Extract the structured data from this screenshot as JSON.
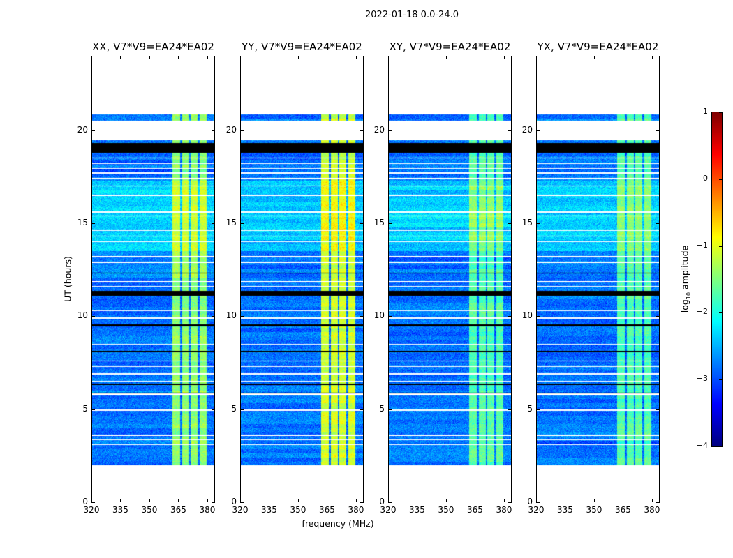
{
  "chart_data": {
    "type": "heatmap",
    "title": "2022-01-18 0.0-24.0",
    "xlabel": "frequency (MHz)",
    "ylabel": "UT (hours)",
    "xlim": [
      320,
      384
    ],
    "ylim": [
      0,
      24
    ],
    "xticks": [
      320,
      335,
      350,
      365,
      380
    ],
    "yticks": [
      0,
      5,
      10,
      15,
      20
    ],
    "panels": [
      {
        "title": "XX, V7*V9=EA24*EA02",
        "rfi_level": -1.4
      },
      {
        "title": "YY, V7*V9=EA24*EA02",
        "rfi_level": -1.1
      },
      {
        "title": "XY, V7*V9=EA24*EA02",
        "rfi_level": -1.7
      },
      {
        "title": "YX, V7*V9=EA24*EA02",
        "rfi_level": -1.7
      }
    ],
    "data_span_hours": [
      2.0,
      20.85
    ],
    "blank_ranges_hours": [
      [
        5.72,
        5.85
      ],
      [
        19.45,
        20.5
      ]
    ],
    "flagged_black_ranges_hours": [
      [
        18.8,
        19.3
      ],
      [
        11.1,
        11.35
      ],
      [
        9.45,
        9.55
      ],
      [
        8.05,
        8.15
      ],
      [
        5.85,
        5.9
      ],
      [
        6.3,
        6.36
      ],
      [
        12.3,
        12.35
      ]
    ],
    "blank_lines_hours": [
      3.1,
      3.35,
      3.6,
      4.95,
      6.5,
      6.9,
      7.3,
      7.6,
      8.5,
      9.9,
      10.3,
      11.6,
      11.85,
      12.9,
      13.2,
      14.0,
      14.3,
      14.6,
      15.4,
      15.6,
      16.5,
      17.0,
      17.4,
      17.7,
      17.95,
      18.2,
      18.5
    ],
    "background_level": -2.8,
    "bright_period_hours": [
      13.5,
      17.3
    ],
    "rfi_channels_mhz": [
      [
        362,
        366
      ],
      [
        367,
        370.5
      ],
      [
        371.5,
        375
      ],
      [
        376,
        379.5
      ]
    ],
    "colorbar": {
      "label_prefix": "log",
      "label_sub": "10",
      "label_suffix": " amplitude",
      "range": [
        -4,
        1
      ],
      "ticks": [
        1,
        0,
        -1,
        -2,
        -3,
        -4
      ],
      "tick_labels": [
        "1",
        "0",
        "−1",
        "−2",
        "−3",
        "−4"
      ]
    }
  }
}
